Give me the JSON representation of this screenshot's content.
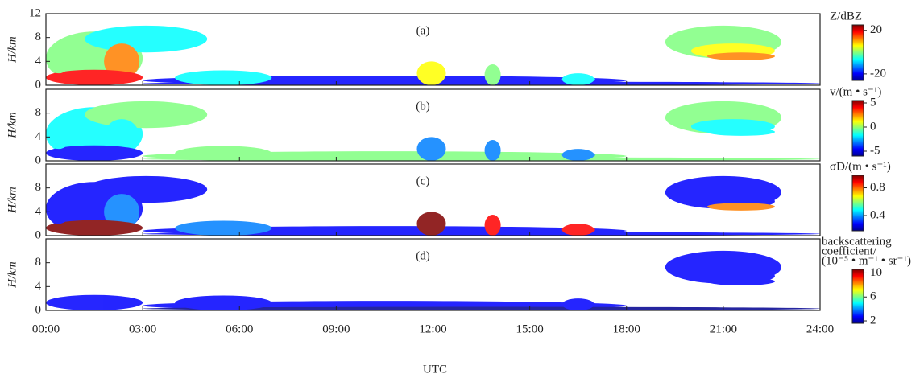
{
  "x_axis": {
    "label": "UTC",
    "xlim": [
      0,
      24
    ],
    "xticks": [
      {
        "value": 0,
        "label": "00:00"
      },
      {
        "value": 3,
        "label": "03:00"
      },
      {
        "value": 6,
        "label": "06:00"
      },
      {
        "value": 9,
        "label": "09:00"
      },
      {
        "value": 12,
        "label": "12:00"
      },
      {
        "value": 15,
        "label": "15:00"
      },
      {
        "value": 18,
        "label": "18:00"
      },
      {
        "value": 21,
        "label": "21:00"
      },
      {
        "value": 24,
        "label": "24:00"
      }
    ]
  },
  "chart_data": [
    {
      "type": "heatmap",
      "annotation": "(a)",
      "ylabel": "H/km",
      "ylim": [
        0,
        12
      ],
      "yticks": [
        0,
        4,
        8,
        12
      ],
      "colorbar": {
        "label_lines": [
          "Z/dBZ"
        ],
        "lim": [
          -26,
          25
        ],
        "ticks": [
          20,
          -20
        ]
      }
    },
    {
      "type": "heatmap",
      "annotation": "(b)",
      "ylabel": "H/km",
      "ylim": [
        0,
        12
      ],
      "yticks": [
        0,
        4,
        8
      ],
      "colorbar": {
        "label_lines": [
          "v/(m • s⁻¹)"
        ],
        "lim": [
          -6,
          5.5
        ],
        "ticks": [
          5,
          0,
          -5
        ]
      }
    },
    {
      "type": "heatmap",
      "annotation": "(c)",
      "ylabel": "H/km",
      "ylim": [
        0,
        12
      ],
      "yticks": [
        0,
        4,
        8
      ],
      "colorbar": {
        "label_lines": [
          "σD/(m • s⁻¹)"
        ],
        "lim": [
          0.18,
          0.98
        ],
        "ticks": [
          0.8,
          0.4
        ]
      }
    },
    {
      "type": "heatmap",
      "annotation": "(d)",
      "ylabel": "H/km",
      "ylim": [
        0,
        12
      ],
      "yticks": [
        0,
        4,
        8
      ],
      "colorbar": {
        "label_lines": [
          "backscattering",
          "coefficient/",
          "(10⁻⁵ • m⁻¹ • sr⁻¹)"
        ],
        "lim": [
          1.6,
          10.6
        ],
        "ticks": [
          10,
          6,
          2
        ]
      }
    }
  ],
  "colormap": [
    "#00008f",
    "#0000ff",
    "#0080ff",
    "#00ffff",
    "#80ff80",
    "#ffff00",
    "#ff8000",
    "#ff0000",
    "#800000"
  ]
}
